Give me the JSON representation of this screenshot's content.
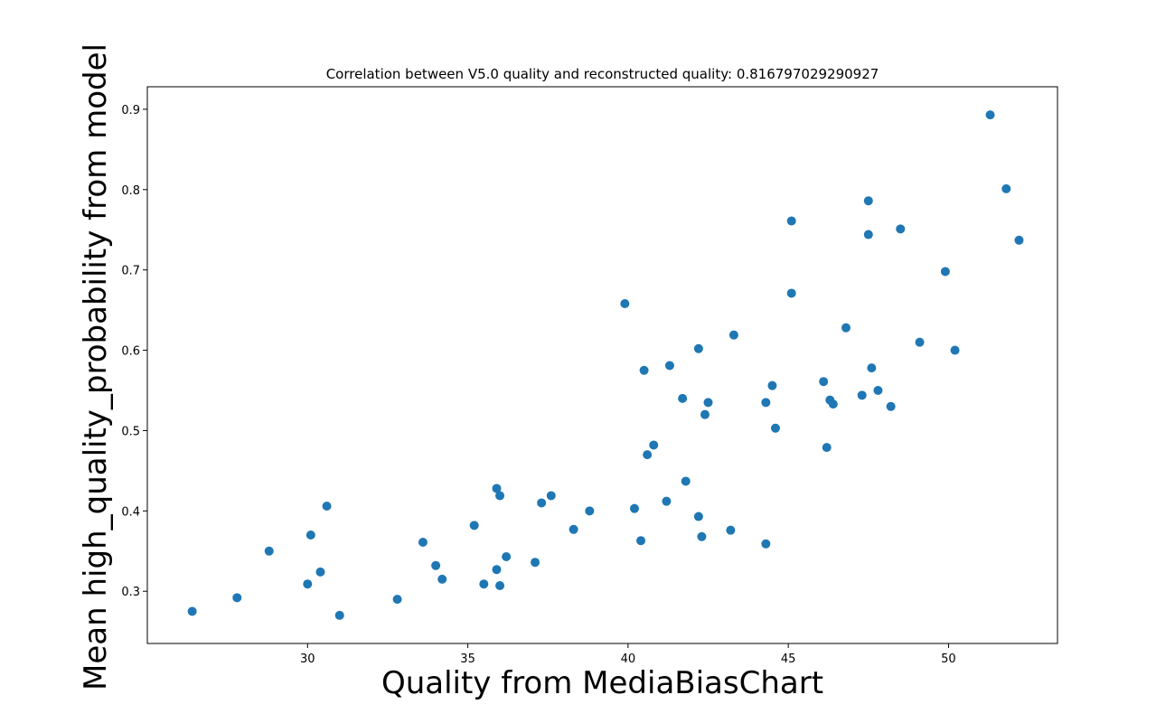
{
  "chart_data": {
    "type": "scatter",
    "title": "Correlation between V5.0 quality and reconstructed quality: 0.816797029290927",
    "xlabel": "Quality from MediaBiasChart",
    "ylabel": "Mean high_quality_probability from model",
    "xlim": [
      25.0,
      53.4
    ],
    "ylim": [
      0.235,
      0.928
    ],
    "x_ticks": [
      30,
      35,
      40,
      45,
      50
    ],
    "y_ticks": [
      0.3,
      0.4,
      0.5,
      0.6,
      0.7,
      0.8,
      0.9
    ],
    "grid": false,
    "legend": "none",
    "marker_color": "#1f77b4",
    "points": [
      {
        "x": 26.4,
        "y": 0.275
      },
      {
        "x": 27.8,
        "y": 0.292
      },
      {
        "x": 28.8,
        "y": 0.35
      },
      {
        "x": 30.0,
        "y": 0.309
      },
      {
        "x": 30.1,
        "y": 0.37
      },
      {
        "x": 30.4,
        "y": 0.324
      },
      {
        "x": 30.6,
        "y": 0.406
      },
      {
        "x": 31.0,
        "y": 0.27
      },
      {
        "x": 32.8,
        "y": 0.29
      },
      {
        "x": 33.6,
        "y": 0.361
      },
      {
        "x": 34.0,
        "y": 0.332
      },
      {
        "x": 34.2,
        "y": 0.315
      },
      {
        "x": 35.2,
        "y": 0.382
      },
      {
        "x": 35.5,
        "y": 0.309
      },
      {
        "x": 35.9,
        "y": 0.327
      },
      {
        "x": 35.9,
        "y": 0.428
      },
      {
        "x": 36.0,
        "y": 0.419
      },
      {
        "x": 36.0,
        "y": 0.307
      },
      {
        "x": 36.2,
        "y": 0.343
      },
      {
        "x": 37.1,
        "y": 0.336
      },
      {
        "x": 37.3,
        "y": 0.41
      },
      {
        "x": 37.6,
        "y": 0.419
      },
      {
        "x": 38.3,
        "y": 0.377
      },
      {
        "x": 38.8,
        "y": 0.4
      },
      {
        "x": 39.9,
        "y": 0.658
      },
      {
        "x": 40.2,
        "y": 0.403
      },
      {
        "x": 40.4,
        "y": 0.363
      },
      {
        "x": 40.5,
        "y": 0.575
      },
      {
        "x": 40.6,
        "y": 0.47
      },
      {
        "x": 40.8,
        "y": 0.482
      },
      {
        "x": 41.2,
        "y": 0.412
      },
      {
        "x": 41.3,
        "y": 0.581
      },
      {
        "x": 41.7,
        "y": 0.54
      },
      {
        "x": 41.8,
        "y": 0.437
      },
      {
        "x": 42.2,
        "y": 0.602
      },
      {
        "x": 42.2,
        "y": 0.393
      },
      {
        "x": 42.3,
        "y": 0.368
      },
      {
        "x": 42.4,
        "y": 0.52
      },
      {
        "x": 42.5,
        "y": 0.535
      },
      {
        "x": 43.2,
        "y": 0.376
      },
      {
        "x": 43.3,
        "y": 0.619
      },
      {
        "x": 44.3,
        "y": 0.535
      },
      {
        "x": 44.3,
        "y": 0.359
      },
      {
        "x": 44.5,
        "y": 0.556
      },
      {
        "x": 44.6,
        "y": 0.503
      },
      {
        "x": 45.1,
        "y": 0.761
      },
      {
        "x": 45.1,
        "y": 0.671
      },
      {
        "x": 46.1,
        "y": 0.561
      },
      {
        "x": 46.2,
        "y": 0.479
      },
      {
        "x": 46.3,
        "y": 0.538
      },
      {
        "x": 46.4,
        "y": 0.533
      },
      {
        "x": 46.8,
        "y": 0.628
      },
      {
        "x": 47.3,
        "y": 0.544
      },
      {
        "x": 47.5,
        "y": 0.786
      },
      {
        "x": 47.5,
        "y": 0.744
      },
      {
        "x": 47.6,
        "y": 0.578
      },
      {
        "x": 47.8,
        "y": 0.55
      },
      {
        "x": 48.2,
        "y": 0.53
      },
      {
        "x": 48.5,
        "y": 0.751
      },
      {
        "x": 49.1,
        "y": 0.61
      },
      {
        "x": 49.9,
        "y": 0.698
      },
      {
        "x": 50.2,
        "y": 0.6
      },
      {
        "x": 51.3,
        "y": 0.893
      },
      {
        "x": 51.8,
        "y": 0.801
      },
      {
        "x": 52.2,
        "y": 0.737
      }
    ]
  }
}
